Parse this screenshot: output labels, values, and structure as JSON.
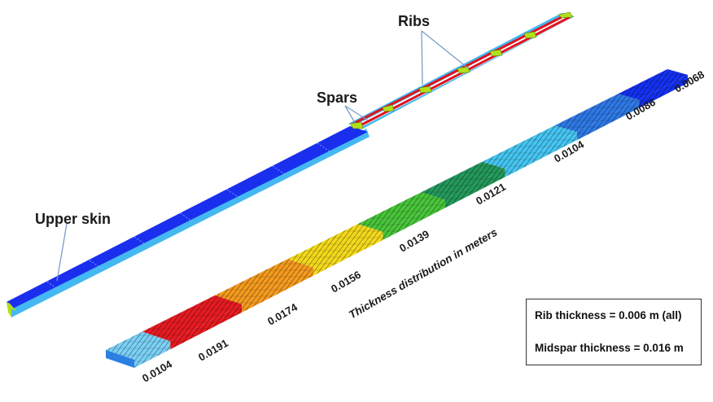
{
  "labels": {
    "ribs": "Ribs",
    "spars": "Spars",
    "upper_skin": "Upper skin",
    "caption": "Thickness distribution in meters"
  },
  "thickness_ticks": [
    "0.0104",
    "0.0191",
    "0.0174",
    "0.0156",
    "0.0139",
    "0.0121",
    "0.0104",
    "0.0086",
    "0.0068"
  ],
  "segment_colors": [
    "#7ad0f5",
    "#e61b22",
    "#f39a1e",
    "#f2d81c",
    "#48c43a",
    "#23985a",
    "#45c4f0",
    "#2e78e4",
    "#1431f0"
  ],
  "info": {
    "rib_thickness": "Rib thickness = 0.006 m (all)",
    "midspar_thickness": "Midspar thickness = 0.016 m"
  },
  "colors": {
    "skin": "#1a2fee",
    "skin_edge": "#44b8f2",
    "rib": "#b0e01a",
    "spar": "#e0141e"
  }
}
